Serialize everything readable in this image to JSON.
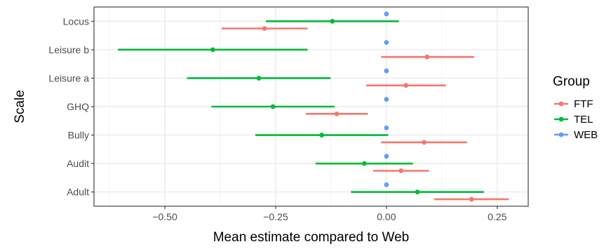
{
  "chart_data": {
    "type": "scatter",
    "subtype": "point-range (dodged)",
    "xlabel": "Mean estimate compared to Web",
    "ylabel": "Scale",
    "xlim": [
      -0.66,
      0.32
    ],
    "x_ticks": [
      -0.5,
      -0.25,
      0.0,
      0.25
    ],
    "x_tick_labels": [
      "−0.50",
      "−0.25",
      "0.00",
      "0.25"
    ],
    "categories": [
      "Locus",
      "Leisure b",
      "Leisure a",
      "GHQ",
      "Bully",
      "Audit",
      "Adult"
    ],
    "grid": true,
    "legend": {
      "title": "Group",
      "position": "right",
      "entries": [
        "FTF",
        "TEL",
        "WEB"
      ]
    },
    "series": [
      {
        "name": "FTF",
        "color": "#F8766D",
        "points": [
          {
            "category": "Locus",
            "estimate": -0.275,
            "low": -0.372,
            "high": -0.178
          },
          {
            "category": "Leisure b",
            "estimate": 0.092,
            "low": -0.012,
            "high": 0.198
          },
          {
            "category": "Leisure a",
            "estimate": 0.044,
            "low": -0.046,
            "high": 0.134
          },
          {
            "category": "GHQ",
            "estimate": -0.112,
            "low": -0.182,
            "high": -0.042
          },
          {
            "category": "Bully",
            "estimate": 0.085,
            "low": -0.012,
            "high": 0.182
          },
          {
            "category": "Audit",
            "estimate": 0.033,
            "low": -0.03,
            "high": 0.096
          },
          {
            "category": "Adult",
            "estimate": 0.192,
            "low": 0.108,
            "high": 0.276
          }
        ]
      },
      {
        "name": "TEL",
        "color": "#00BA38",
        "points": [
          {
            "category": "Locus",
            "estimate": -0.122,
            "low": -0.272,
            "high": 0.028
          },
          {
            "category": "Leisure b",
            "estimate": -0.392,
            "low": -0.606,
            "high": -0.178
          },
          {
            "category": "Leisure a",
            "estimate": -0.288,
            "low": -0.45,
            "high": -0.126
          },
          {
            "category": "GHQ",
            "estimate": -0.256,
            "low": -0.395,
            "high": -0.117
          },
          {
            "category": "Bully",
            "estimate": -0.146,
            "low": -0.296,
            "high": 0.004
          },
          {
            "category": "Audit",
            "estimate": -0.05,
            "low": -0.16,
            "high": 0.06
          },
          {
            "category": "Adult",
            "estimate": 0.07,
            "low": -0.08,
            "high": 0.22
          }
        ]
      },
      {
        "name": "WEB",
        "color": "#619CFF",
        "points": [
          {
            "category": "Locus",
            "estimate": 0.0,
            "low": 0.0,
            "high": 0.0
          },
          {
            "category": "Leisure b",
            "estimate": 0.0,
            "low": 0.0,
            "high": 0.0
          },
          {
            "category": "Leisure a",
            "estimate": 0.0,
            "low": 0.0,
            "high": 0.0
          },
          {
            "category": "GHQ",
            "estimate": 0.0,
            "low": 0.0,
            "high": 0.0
          },
          {
            "category": "Bully",
            "estimate": 0.0,
            "low": 0.0,
            "high": 0.0
          },
          {
            "category": "Audit",
            "estimate": 0.0,
            "low": 0.0,
            "high": 0.0
          },
          {
            "category": "Adult",
            "estimate": 0.0,
            "low": 0.0,
            "high": 0.0
          }
        ]
      }
    ]
  }
}
